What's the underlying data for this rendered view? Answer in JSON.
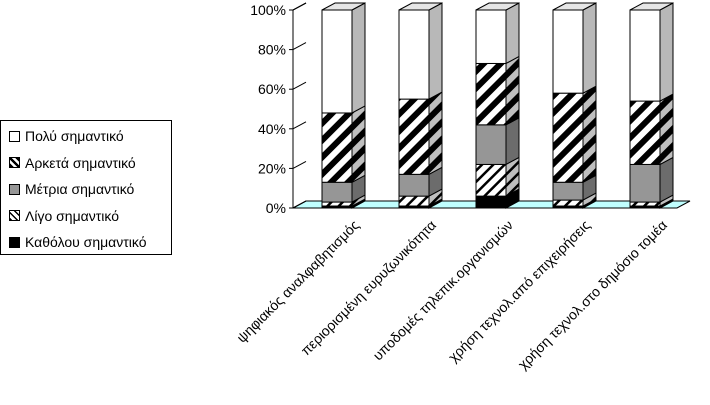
{
  "chart_data": {
    "type": "bar",
    "stacked": true,
    "percent": true,
    "three_d": true,
    "categories": [
      "ψηφιακός αναλφαβητισμός",
      "περιορισμένη ευρυζωνικότητα",
      "υποδομές τηλεπικ.οργανισμών",
      "χρήση τεχνολ.από επιχειρήσεις",
      "χρήση τεχνολ.στο δημόσιο τομέα"
    ],
    "series": [
      {
        "name": "Καθόλου σημαντικό",
        "values": [
          1,
          1,
          6,
          1,
          1
        ],
        "color": "#000000",
        "pattern": "solid"
      },
      {
        "name": "Λίγο σημαντικό",
        "values": [
          2,
          5,
          16,
          3,
          2
        ],
        "color": "#ffffff",
        "pattern": "sparse-diagonal"
      },
      {
        "name": "Μέτρια σημαντικό",
        "values": [
          10,
          11,
          20,
          9,
          19
        ],
        "color": "#969696",
        "pattern": "solid"
      },
      {
        "name": "Αρκετά σημαντικό",
        "values": [
          35,
          38,
          31,
          45,
          32
        ],
        "color": "#ffffff",
        "pattern": "wide-diagonal"
      },
      {
        "name": "Πολύ σημαντικό",
        "values": [
          52,
          45,
          27,
          42,
          46
        ],
        "color": "#ffffff",
        "pattern": "solid"
      }
    ],
    "ylim": [
      0,
      100
    ],
    "yticks": [
      "0%",
      "20%",
      "40%",
      "60%",
      "80%",
      "100%"
    ],
    "legend_order": [
      "Πολύ σημαντικό",
      "Αρκετά σημαντικό",
      "Μέτρια σημαντικό",
      "Λίγο σημαντικό",
      "Καθόλου σημαντικό"
    ],
    "legend_position": "left",
    "grid": false,
    "floor_color": "#c0ffff",
    "wall_color": "#ffffff"
  }
}
